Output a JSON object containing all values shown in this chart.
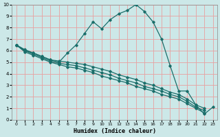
{
  "xlabel": "Humidex (Indice chaleur)",
  "bg_color": "#cce8e8",
  "grid_color": "#e8a0a0",
  "line_color": "#1a6e6a",
  "xlim": [
    -0.5,
    23.5
  ],
  "ylim": [
    0,
    10
  ],
  "xticks": [
    0,
    1,
    2,
    3,
    4,
    5,
    6,
    7,
    8,
    9,
    10,
    11,
    12,
    13,
    14,
    15,
    16,
    17,
    18,
    19,
    20,
    21,
    22,
    23
  ],
  "yticks": [
    0,
    1,
    2,
    3,
    4,
    5,
    6,
    7,
    8,
    9,
    10
  ],
  "series": [
    {
      "x": [
        0,
        1,
        2,
        3,
        4,
        5,
        6,
        7,
        8,
        9,
        10,
        11,
        12,
        13,
        14,
        15,
        16,
        17,
        18,
        19,
        20,
        21,
        22,
        23
      ],
      "y": [
        6.5,
        6.0,
        5.8,
        5.5,
        5.2,
        5.0,
        5.8,
        6.5,
        7.5,
        8.5,
        7.9,
        8.7,
        9.2,
        9.5,
        10.0,
        9.4,
        8.5,
        7.0,
        4.7,
        2.5,
        2.5,
        1.3,
        0.5,
        1.1
      ]
    },
    {
      "x": [
        0,
        1,
        2,
        3,
        4,
        5,
        6,
        7,
        8,
        9,
        10,
        11,
        12,
        13,
        14,
        15,
        16,
        17,
        18,
        19,
        20,
        21,
        22,
        23
      ],
      "y": [
        6.5,
        6.1,
        5.8,
        5.5,
        5.2,
        5.1,
        5.0,
        4.9,
        4.8,
        4.6,
        4.4,
        4.2,
        3.9,
        3.7,
        3.5,
        3.2,
        3.0,
        2.7,
        2.4,
        2.2,
        1.8,
        1.3,
        1.0,
        null
      ]
    },
    {
      "x": [
        0,
        1,
        2,
        3,
        4,
        5,
        6,
        7,
        8,
        9,
        10,
        11,
        12,
        13,
        14,
        15,
        16,
        17,
        18,
        19,
        20,
        21,
        22,
        23
      ],
      "y": [
        6.5,
        6.0,
        5.7,
        5.4,
        5.1,
        4.9,
        4.8,
        4.7,
        4.5,
        4.3,
        4.1,
        3.9,
        3.6,
        3.4,
        3.2,
        2.9,
        2.7,
        2.5,
        2.2,
        2.0,
        1.6,
        1.1,
        0.8,
        null
      ]
    },
    {
      "x": [
        0,
        1,
        2,
        3,
        4,
        5,
        6,
        7,
        8,
        9,
        10,
        11,
        12,
        13,
        14,
        15,
        16,
        17,
        18,
        19,
        20,
        21,
        22,
        23
      ],
      "y": [
        6.5,
        5.9,
        5.6,
        5.3,
        5.0,
        4.8,
        4.6,
        4.5,
        4.3,
        4.1,
        3.8,
        3.6,
        3.4,
        3.2,
        2.9,
        2.7,
        2.5,
        2.2,
        2.0,
        1.8,
        1.4,
        1.0,
        0.6,
        null
      ]
    }
  ]
}
